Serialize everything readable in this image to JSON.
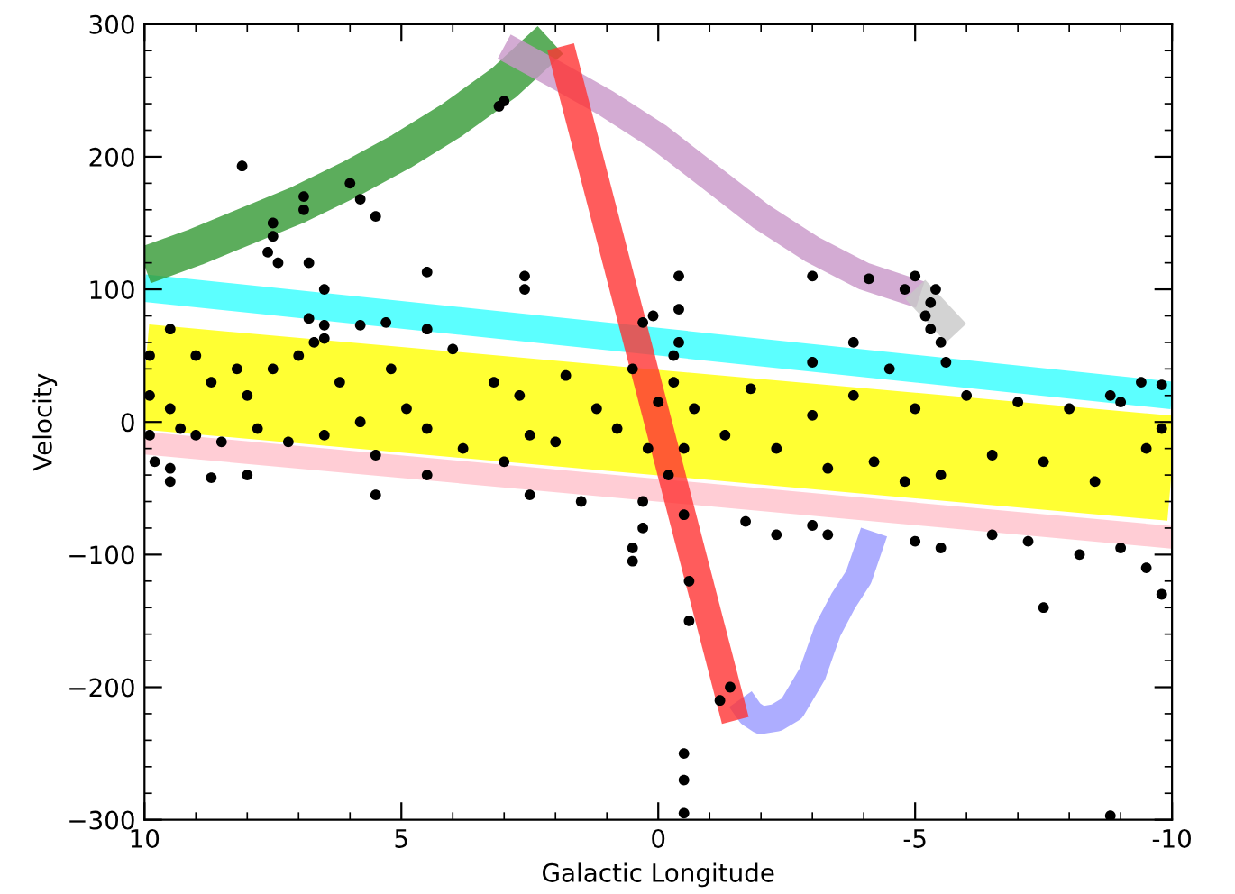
{
  "chart_data": {
    "type": "scatter",
    "xlabel": "Galactic Longitude",
    "ylabel": "Velocity",
    "xlim": [
      10,
      -10
    ],
    "xticks": [
      10,
      5,
      0,
      -5,
      -10
    ],
    "ylim": [
      -300,
      300
    ],
    "yticks": [
      -300,
      -200,
      -100,
      0,
      100,
      200,
      300
    ],
    "grid": false,
    "legend": false,
    "series": [
      {
        "type": "line",
        "color": "#ffff00",
        "x": [
          10,
          -10
        ],
        "values": [
          34,
          -35
        ]
      },
      {
        "type": "line",
        "color": "#ffc0cb",
        "x": [
          10,
          -10
        ],
        "values": [
          -16,
          -87
        ]
      },
      {
        "type": "line",
        "color": "#33ffff",
        "x": [
          10,
          -10
        ],
        "values": [
          101,
          20
        ]
      },
      {
        "type": "line",
        "color": "#339933",
        "x": [
          10,
          9,
          8,
          7,
          6,
          5,
          4,
          3,
          2.1
        ],
        "values": [
          118,
          132,
          148,
          164,
          183,
          204,
          228,
          256,
          288
        ]
      },
      {
        "type": "line",
        "color": "#c896c8",
        "x": [
          3,
          2,
          1,
          0,
          -1,
          -2,
          -3,
          -4,
          -5.1
        ],
        "values": [
          283,
          262,
          240,
          215,
          185,
          155,
          130,
          110,
          96
        ]
      },
      {
        "type": "line",
        "color": "#c8c8c8",
        "x": [
          -5.0,
          -5.8
        ],
        "values": [
          100,
          67
        ]
      },
      {
        "type": "line",
        "color": "#9999ff",
        "x": [
          -1.6,
          -1.8,
          -2.0,
          -2.3,
          -2.6,
          -3.0,
          -3.3,
          -3.6,
          -3.9,
          -4.2
        ],
        "values": [
          -209,
          -220,
          -225,
          -223,
          -216,
          -190,
          -157,
          -135,
          -117,
          -83
        ]
      },
      {
        "type": "line",
        "color": "#ff3333",
        "x": [
          1.9,
          -1.5
        ],
        "values": [
          283,
          -225
        ]
      },
      {
        "color": "#000000",
        "marker": "circle",
        "x": [
          8.1,
          7.5,
          7.5,
          6.9,
          6.9,
          6.0,
          5.8,
          5.5,
          7.6,
          7.4,
          6.8,
          6.5,
          4.5,
          3.0,
          3.1,
          -0.4,
          -0.4,
          -0.4,
          -0.3,
          0.1,
          0.3,
          2.6,
          2.6,
          6.8,
          5.8,
          5.3,
          4.5,
          6.5,
          6.5,
          -5.0,
          -4.1,
          -3.0,
          -5.3,
          -5.2,
          -5.3,
          -5.5,
          -4.8,
          -3.0,
          -5.4,
          -5.6,
          -3.8,
          -9.4,
          -9.8,
          -8.8,
          9.9,
          9.9,
          9.9,
          9.8,
          9.5,
          9.5,
          9.3,
          9.0,
          9.0,
          8.7,
          8.5,
          8.2,
          8.0,
          7.8,
          7.5,
          7.2,
          7.0,
          6.7,
          6.5,
          6.2,
          5.8,
          5.5,
          5.2,
          4.9,
          4.5,
          4.0,
          3.8,
          3.2,
          3.0,
          2.7,
          2.5,
          2.0,
          1.8,
          1.2,
          0.8,
          0.5,
          0.3,
          0.2,
          0.0,
          -0.2,
          -0.3,
          -0.5,
          -0.7,
          -1.3,
          -1.8,
          -2.3,
          -3.0,
          -3.3,
          -3.8,
          -4.2,
          -4.5,
          -4.8,
          -5.0,
          -5.5,
          -6.0,
          -6.5,
          -7.0,
          -7.5,
          -8.0,
          -8.5,
          -9.0,
          -9.5,
          -9.8,
          9.5,
          9.5,
          8.7,
          8.0,
          5.5,
          4.5,
          2.5,
          1.5,
          0.5,
          0.5,
          0.3,
          -0.5,
          -1.7,
          -2.3,
          -3.3,
          -5.0,
          -5.5,
          -6.5,
          -7.2,
          -8.2,
          -9.5,
          -9.8,
          -7.5,
          -3.0,
          -9.0,
          -1.2,
          -1.4,
          -0.5,
          -0.5,
          -0.5,
          -8.8,
          -0.6,
          -0.6
        ],
        "values": [
          193,
          150,
          140,
          170,
          160,
          180,
          168,
          155,
          128,
          120,
          120,
          100,
          113,
          242,
          238,
          110,
          85,
          60,
          50,
          80,
          75,
          110,
          100,
          78,
          73,
          75,
          70,
          73,
          63,
          110,
          108,
          110,
          90,
          80,
          70,
          60,
          100,
          45,
          100,
          45,
          60,
          30,
          28,
          20,
          50,
          20,
          -10,
          -30,
          70,
          10,
          -5,
          50,
          -10,
          30,
          -15,
          40,
          20,
          -5,
          40,
          -15,
          50,
          60,
          -10,
          30,
          0,
          -25,
          40,
          10,
          -5,
          55,
          -20,
          30,
          -30,
          20,
          -10,
          -15,
          35,
          10,
          -5,
          40,
          -60,
          -20,
          15,
          -40,
          30,
          -20,
          10,
          -10,
          25,
          -20,
          5,
          -35,
          20,
          -30,
          40,
          -45,
          10,
          -40,
          20,
          -25,
          15,
          -30,
          10,
          -45,
          15,
          -20,
          -5,
          -45,
          -35,
          -42,
          -40,
          -55,
          -40,
          -55,
          -60,
          -95,
          -105,
          -80,
          -70,
          -75,
          -85,
          -85,
          -90,
          -95,
          -85,
          -90,
          -100,
          -110,
          -130,
          -140,
          -78,
          -95,
          -210,
          -200,
          -250,
          -270,
          -295,
          -297,
          -120,
          -150
        ]
      }
    ]
  }
}
